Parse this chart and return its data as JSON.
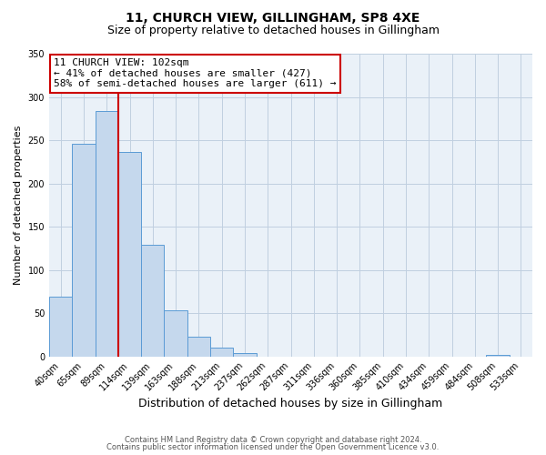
{
  "title": "11, CHURCH VIEW, GILLINGHAM, SP8 4XE",
  "subtitle": "Size of property relative to detached houses in Gillingham",
  "xlabel": "Distribution of detached houses by size in Gillingham",
  "ylabel": "Number of detached properties",
  "bin_labels": [
    "40sqm",
    "65sqm",
    "89sqm",
    "114sqm",
    "139sqm",
    "163sqm",
    "188sqm",
    "213sqm",
    "237sqm",
    "262sqm",
    "287sqm",
    "311sqm",
    "336sqm",
    "360sqm",
    "385sqm",
    "410sqm",
    "434sqm",
    "459sqm",
    "484sqm",
    "508sqm",
    "533sqm"
  ],
  "bar_values": [
    69,
    246,
    284,
    236,
    129,
    53,
    23,
    10,
    4,
    0,
    0,
    0,
    0,
    0,
    0,
    0,
    0,
    0,
    0,
    2,
    0
  ],
  "bar_color": "#c5d8ed",
  "bar_edge_color": "#5b9bd5",
  "ylim": [
    0,
    350
  ],
  "yticks": [
    0,
    50,
    100,
    150,
    200,
    250,
    300,
    350
  ],
  "vline_x_bar_index": 2.52,
  "annotation_title": "11 CHURCH VIEW: 102sqm",
  "annotation_line1": "← 41% of detached houses are smaller (427)",
  "annotation_line2": "58% of semi-detached houses are larger (611) →",
  "annotation_box_color": "#ffffff",
  "annotation_border_color": "#cc0000",
  "vline_color": "#cc0000",
  "footer_line1": "Contains HM Land Registry data © Crown copyright and database right 2024.",
  "footer_line2": "Contains public sector information licensed under the Open Government Licence v3.0.",
  "grid_color": "#c0cfe0",
  "background_color": "#eaf1f8",
  "figure_background": "#ffffff",
  "title_fontsize": 10,
  "subtitle_fontsize": 9,
  "ylabel_fontsize": 8,
  "xlabel_fontsize": 9,
  "tick_fontsize": 7,
  "annotation_fontsize": 8,
  "footer_fontsize": 6
}
